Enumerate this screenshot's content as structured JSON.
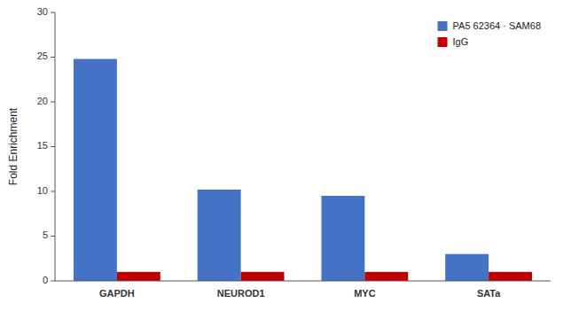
{
  "chart_data": {
    "type": "bar",
    "ylabel": "Fold Enrichment",
    "categories": [
      "GAPDH",
      "NEUROD1",
      "MYC",
      "SATa"
    ],
    "series": [
      {
        "name": "PA5 62364 · SAM68",
        "color": "#4472C4",
        "values": [
          24.8,
          10.2,
          9.5,
          3.0
        ]
      },
      {
        "name": "IgG",
        "color": "#C00000",
        "values": [
          1.0,
          1.0,
          1.0,
          1.0
        ]
      }
    ],
    "ylim": [
      0,
      30
    ],
    "yticks": [
      0,
      5,
      10,
      15,
      20,
      25,
      30
    ],
    "grid": false,
    "legend": "top-right"
  }
}
